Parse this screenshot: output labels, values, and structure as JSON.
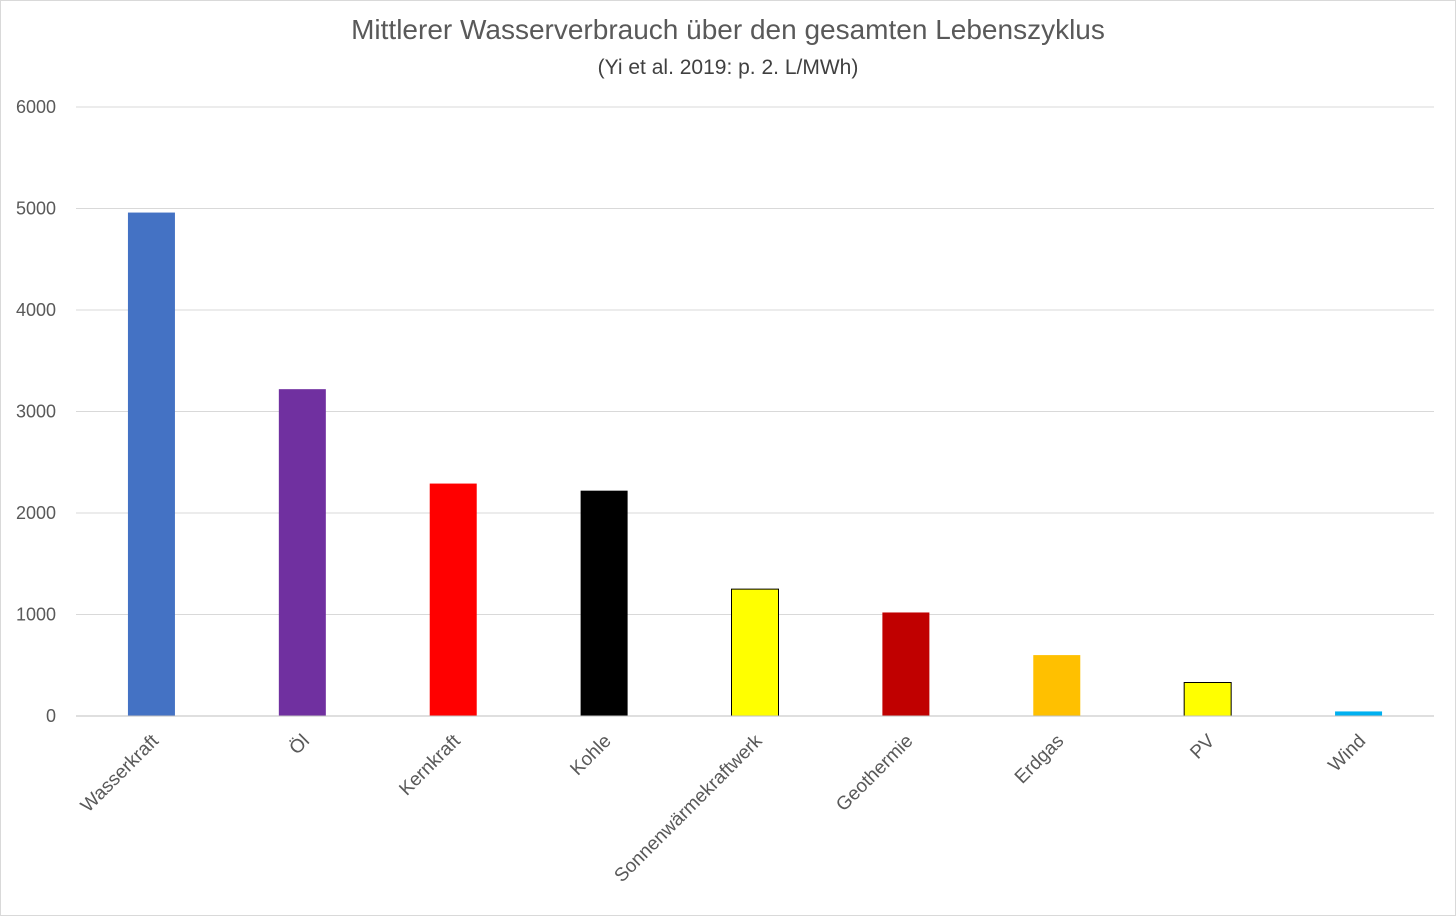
{
  "chart_data": {
    "type": "bar",
    "title": "Mittlerer Wasserverbrauch über den gesamten Lebenszyklus",
    "subtitle": "(Yi et al. 2019: p. 2.  L/MWh)",
    "xlabel": "",
    "ylabel": "",
    "ylim": [
      0,
      6000
    ],
    "yticks": [
      0,
      1000,
      2000,
      3000,
      4000,
      5000,
      6000
    ],
    "grid": true,
    "legend": "none",
    "categories": [
      "Wasserkraft",
      "Öl",
      "Kernkraft",
      "Kohle",
      "Sonnenwärmekraftwerk",
      "Geothermie",
      "Erdgas",
      "PV",
      "Wind"
    ],
    "values": [
      4960,
      3220,
      2290,
      2220,
      1250,
      1020,
      600,
      330,
      45
    ],
    "colors": [
      "#4472C4",
      "#7030A0",
      "#FF0000",
      "#000000",
      "#FFFF00",
      "#C00000",
      "#FFC000",
      "#FFFF00",
      "#00B0F0"
    ],
    "outlined": [
      false,
      false,
      false,
      false,
      true,
      false,
      false,
      true,
      false
    ]
  }
}
